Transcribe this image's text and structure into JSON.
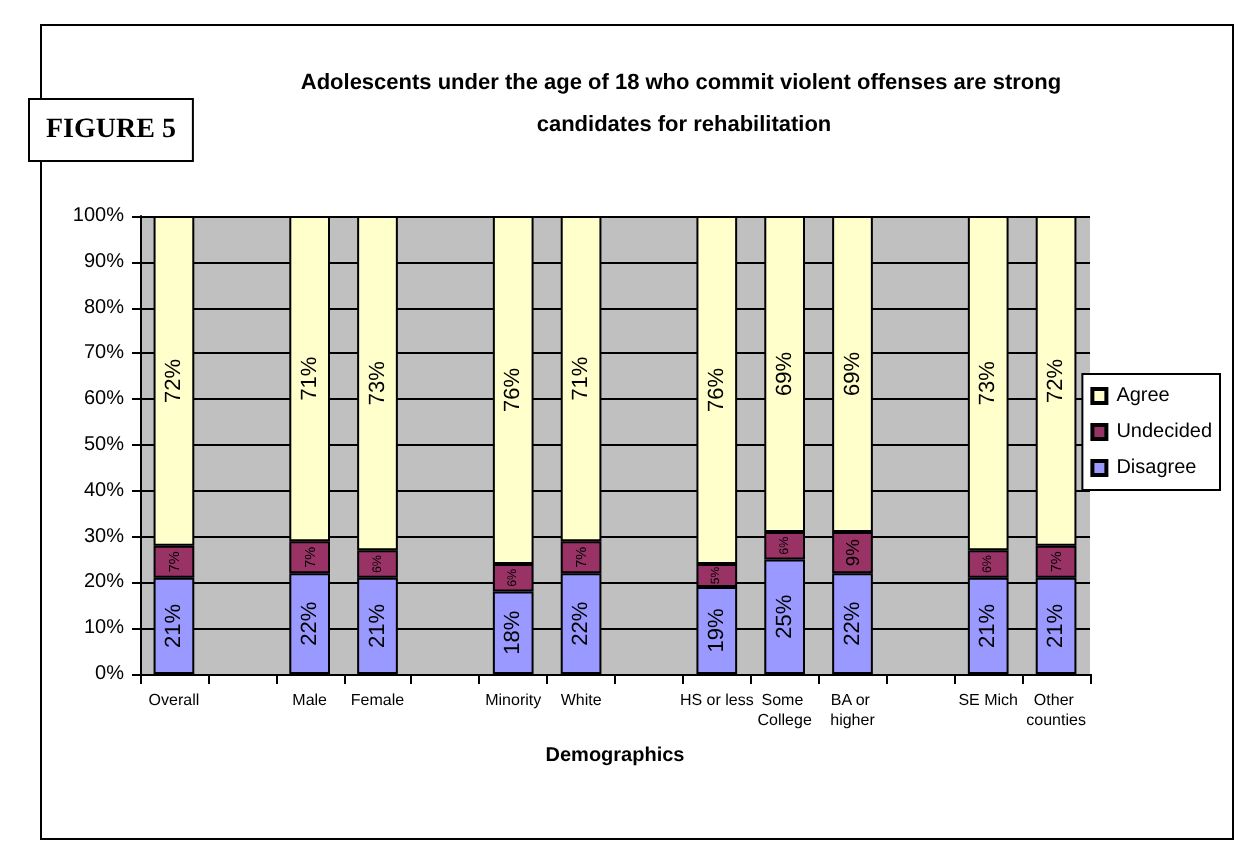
{
  "chart_data": {
    "type": "bar",
    "stacked": true,
    "title": "Adolescents under the age of 18 who commit violent offenses are strong candidates for rehabilitation",
    "xlabel": "Demographics",
    "annotations": [
      "FIGURE 5"
    ],
    "categories": [
      "Overall",
      null,
      "Male",
      "Female",
      null,
      "Minority",
      "White",
      null,
      "HS or less",
      "Some College",
      "BA or higher",
      null,
      "SE Mich",
      "Other counties"
    ],
    "series": [
      {
        "name": "Disagree",
        "color": "#9999ff",
        "values": [
          21,
          null,
          22,
          21,
          null,
          18,
          22,
          null,
          19,
          25,
          22,
          null,
          21,
          21
        ],
        "value_labels": [
          "21%",
          null,
          "22%",
          "21%",
          null,
          "18%",
          "22%",
          null,
          "19%",
          "25%",
          "22%",
          null,
          "21%",
          "21%"
        ]
      },
      {
        "name": "Undecided",
        "color": "#993366",
        "values": [
          7,
          null,
          7,
          6,
          null,
          6,
          7,
          null,
          5,
          6,
          9,
          null,
          6,
          7
        ],
        "value_labels": [
          "7%",
          null,
          "7%",
          "6%",
          null,
          "6%",
          "7%",
          null,
          "5%",
          "6%",
          "9%",
          null,
          "6%",
          "7%"
        ]
      },
      {
        "name": "Agree",
        "color": "#ffffcc",
        "values": [
          72,
          null,
          71,
          73,
          null,
          76,
          71,
          null,
          76,
          69,
          69,
          null,
          73,
          72
        ],
        "value_labels": [
          "72%",
          null,
          "71%",
          "73%",
          null,
          "76%",
          "71%",
          null,
          "76%",
          "69%",
          "69%",
          null,
          "73%",
          "72%"
        ]
      }
    ],
    "ylim": [
      0,
      100
    ],
    "yticks": [
      {
        "value": 0,
        "label": "0%"
      },
      {
        "value": 10,
        "label": "10%"
      },
      {
        "value": 20,
        "label": "20%"
      },
      {
        "value": 30,
        "label": "30%"
      },
      {
        "value": 40,
        "label": "40%"
      },
      {
        "value": 50,
        "label": "50%"
      },
      {
        "value": 60,
        "label": "60%"
      },
      {
        "value": 70,
        "label": "70%"
      },
      {
        "value": 80,
        "label": "80%"
      },
      {
        "value": 90,
        "label": "90%"
      },
      {
        "value": 100,
        "label": "100%"
      }
    ],
    "grid": "y",
    "legend": "right"
  }
}
